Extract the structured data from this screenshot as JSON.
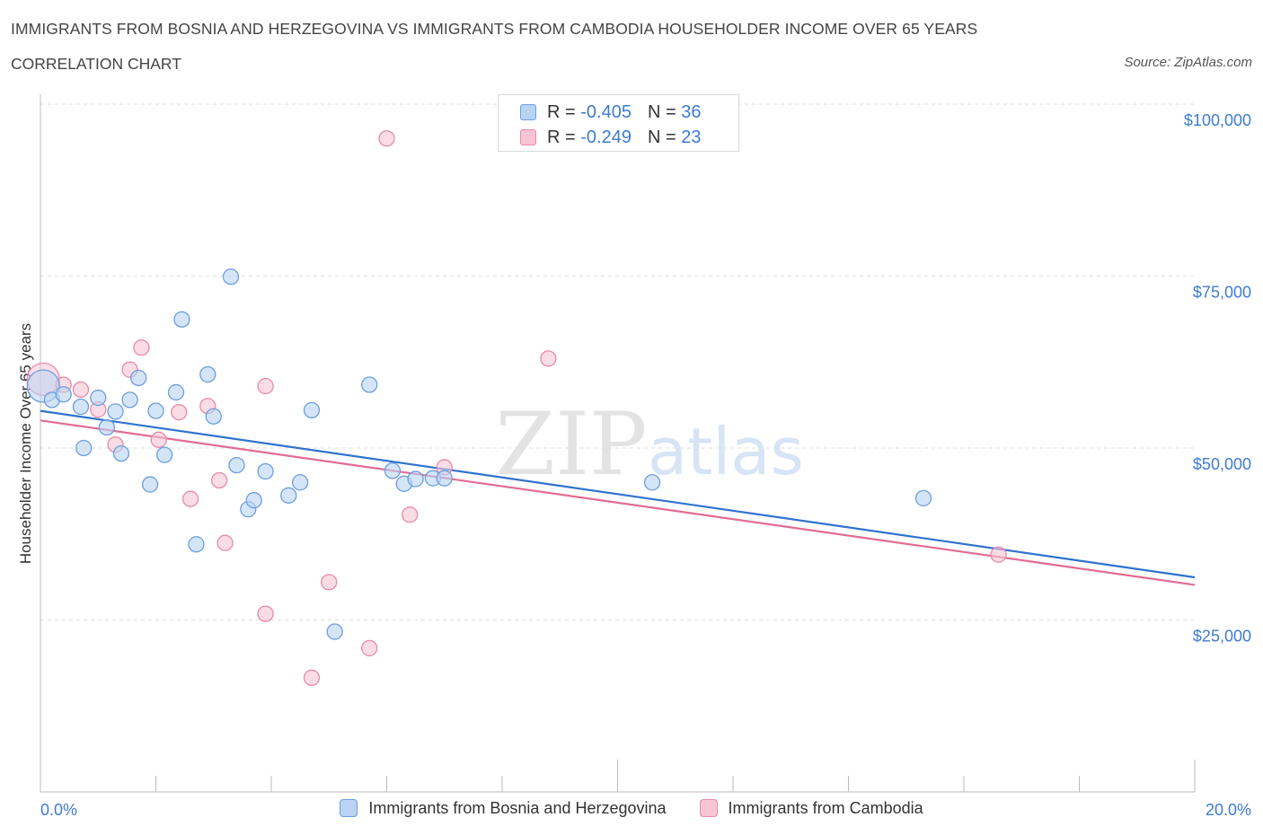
{
  "title": "IMMIGRANTS FROM BOSNIA AND HERZEGOVINA VS IMMIGRANTS FROM CAMBODIA HOUSEHOLDER INCOME OVER 65 YEARS",
  "subtitle": "CORRELATION CHART",
  "source": "Source: ZipAtlas.com",
  "watermark": {
    "zip": "ZIP",
    "atlas": "atlas"
  },
  "colors": {
    "blue_fill": "#b9d3f4",
    "blue_stroke": "#6b9fe0",
    "blue_line": "#2f72cf",
    "pink_fill": "#f7c4d4",
    "pink_stroke": "#e98aa9",
    "pink_line": "#e26b93",
    "grid": "#dddddd",
    "axis_text": "#3d7bd1"
  },
  "legend": {
    "rows": [
      {
        "r_label": "R = ",
        "r_value": "-0.405",
        "n_label": "N = ",
        "n_value": "36"
      },
      {
        "r_label": "R = ",
        "r_value": "-0.249",
        "n_label": "N = ",
        "n_value": "23"
      }
    ]
  },
  "chart_data": {
    "type": "scatter",
    "title": "IMMIGRANTS FROM BOSNIA AND HERZEGOVINA VS IMMIGRANTS FROM CAMBODIA HOUSEHOLDER INCOME OVER 65 YEARS",
    "ylabel": "Householder Income Over 65 years",
    "x_tick_labels": [
      "0.0%",
      "20.0%"
    ],
    "y_tick_labels": [
      "$100,000",
      "$75,000",
      "$50,000",
      "$25,000"
    ],
    "y_ticks": [
      100000,
      75000,
      50000,
      25000
    ],
    "xlim": [
      0,
      20
    ],
    "ylim": [
      0,
      102000
    ],
    "grid": true,
    "legend_position": "top-center",
    "series": [
      {
        "name": "Immigrants from Bosnia and Herzegovina",
        "color": "#6b9fe0",
        "points": [
          {
            "x": 0.05,
            "y": 59000,
            "big": true
          },
          {
            "x": 0.2,
            "y": 57000
          },
          {
            "x": 0.4,
            "y": 57800
          },
          {
            "x": 0.7,
            "y": 56000
          },
          {
            "x": 0.75,
            "y": 50000
          },
          {
            "x": 1.0,
            "y": 57300
          },
          {
            "x": 1.15,
            "y": 53000
          },
          {
            "x": 1.3,
            "y": 55300
          },
          {
            "x": 1.4,
            "y": 49200
          },
          {
            "x": 1.55,
            "y": 57000
          },
          {
            "x": 1.7,
            "y": 60200
          },
          {
            "x": 1.9,
            "y": 44700
          },
          {
            "x": 2.0,
            "y": 55400
          },
          {
            "x": 2.15,
            "y": 49000
          },
          {
            "x": 2.35,
            "y": 58100
          },
          {
            "x": 2.45,
            "y": 68700
          },
          {
            "x": 2.7,
            "y": 36000
          },
          {
            "x": 2.9,
            "y": 60700
          },
          {
            "x": 3.0,
            "y": 54600
          },
          {
            "x": 3.3,
            "y": 74900
          },
          {
            "x": 3.4,
            "y": 47500
          },
          {
            "x": 3.6,
            "y": 41100
          },
          {
            "x": 3.7,
            "y": 42400
          },
          {
            "x": 3.9,
            "y": 46600
          },
          {
            "x": 4.3,
            "y": 43100
          },
          {
            "x": 4.5,
            "y": 45000
          },
          {
            "x": 4.7,
            "y": 55500
          },
          {
            "x": 5.1,
            "y": 23300
          },
          {
            "x": 5.7,
            "y": 59200
          },
          {
            "x": 6.1,
            "y": 46700
          },
          {
            "x": 6.3,
            "y": 44800
          },
          {
            "x": 6.5,
            "y": 45500
          },
          {
            "x": 6.8,
            "y": 45600
          },
          {
            "x": 7.0,
            "y": 45600
          },
          {
            "x": 10.6,
            "y": 45000
          },
          {
            "x": 15.3,
            "y": 42700
          }
        ],
        "trend": {
          "x": [
            0,
            20
          ],
          "y": [
            55400,
            31200
          ]
        }
      },
      {
        "name": "Immigrants from Cambodia",
        "color": "#e98aa9",
        "points": [
          {
            "x": 0.05,
            "y": 60000,
            "big": true
          },
          {
            "x": 0.4,
            "y": 59200
          },
          {
            "x": 0.7,
            "y": 58500
          },
          {
            "x": 1.0,
            "y": 55600
          },
          {
            "x": 1.3,
            "y": 50500
          },
          {
            "x": 1.55,
            "y": 61400
          },
          {
            "x": 1.75,
            "y": 64600
          },
          {
            "x": 2.05,
            "y": 51200
          },
          {
            "x": 2.4,
            "y": 55200
          },
          {
            "x": 2.6,
            "y": 42600
          },
          {
            "x": 2.9,
            "y": 56100
          },
          {
            "x": 3.1,
            "y": 45300
          },
          {
            "x": 3.2,
            "y": 36200
          },
          {
            "x": 3.9,
            "y": 59000
          },
          {
            "x": 3.9,
            "y": 25900
          },
          {
            "x": 4.7,
            "y": 16600
          },
          {
            "x": 5.0,
            "y": 30500
          },
          {
            "x": 5.7,
            "y": 20900
          },
          {
            "x": 6.0,
            "y": 95000
          },
          {
            "x": 6.4,
            "y": 40300
          },
          {
            "x": 7.0,
            "y": 47200
          },
          {
            "x": 8.8,
            "y": 63000
          },
          {
            "x": 16.6,
            "y": 34500
          }
        ],
        "trend": {
          "x": [
            0,
            20
          ],
          "y": [
            54000,
            30100
          ]
        }
      }
    ]
  }
}
